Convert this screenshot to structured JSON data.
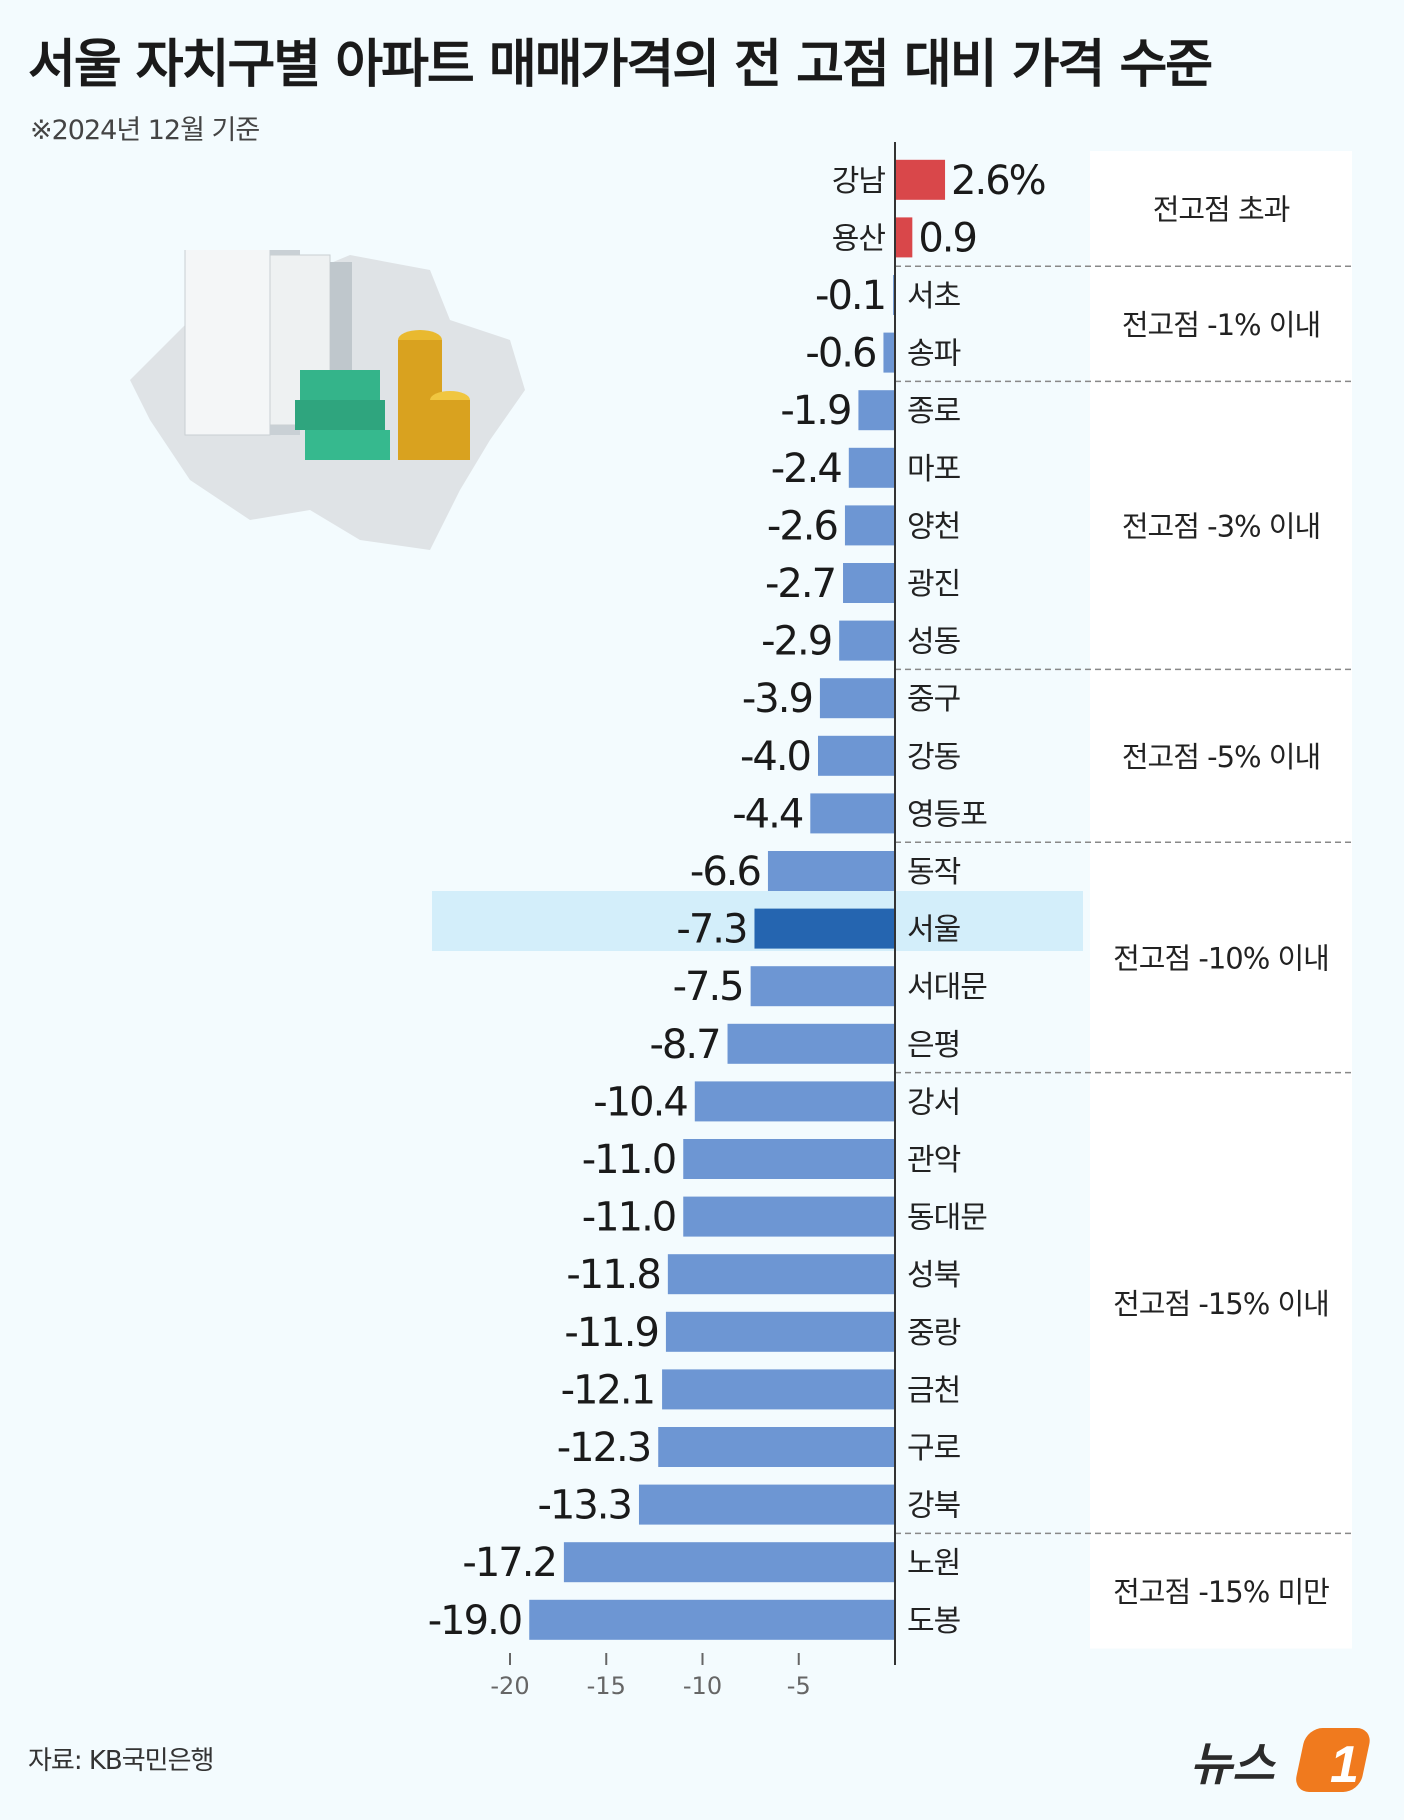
{
  "header": {
    "title": "서울 자치구별 아파트 매매가격의 전 고점 대비 가격 수준",
    "subtitle": "※2024년 12월 기준"
  },
  "footer": {
    "source": "자료: KB국민은행",
    "logo_text": "뉴스",
    "logo_mark": "1"
  },
  "colors": {
    "positive": "#d9474a",
    "negative": "#6d96d3",
    "highlight_bar": "#2565b0",
    "highlight_band": "#d3eefa",
    "group_panel": "#ffffff",
    "logo_orange": "#f07a1e"
  },
  "chart_data": {
    "type": "bar",
    "orientation": "horizontal",
    "categories": [
      "강남",
      "용산",
      "서초",
      "송파",
      "종로",
      "마포",
      "양천",
      "광진",
      "성동",
      "중구",
      "강동",
      "영등포",
      "동작",
      "서울",
      "서대문",
      "은평",
      "강서",
      "관악",
      "동대문",
      "성북",
      "중랑",
      "금천",
      "구로",
      "강북",
      "노원",
      "도봉"
    ],
    "values": [
      2.6,
      0.9,
      -0.1,
      -0.6,
      -1.9,
      -2.4,
      -2.6,
      -2.7,
      -2.9,
      -3.9,
      -4.0,
      -4.4,
      -6.6,
      -7.3,
      -7.5,
      -8.7,
      -10.4,
      -11.0,
      -11.0,
      -11.8,
      -11.9,
      -12.1,
      -12.3,
      -13.3,
      -17.2,
      -19.0
    ],
    "value_labels": [
      "2.6%",
      "0.9",
      "-0.1",
      "-0.6",
      "-1.9",
      "-2.4",
      "-2.6",
      "-2.7",
      "-2.9",
      "-3.9",
      "-4.0",
      "-4.4",
      "-6.6",
      "-7.3",
      "-7.5",
      "-8.7",
      "-10.4",
      "-11.0",
      "-11.0",
      "-11.8",
      "-11.9",
      "-12.1",
      "-12.3",
      "-13.3",
      "-17.2",
      "-19.0"
    ],
    "highlight": "서울",
    "xlim": [
      -20,
      0
    ],
    "xticks": [
      -20,
      -15,
      -10,
      -5
    ],
    "xtick_labels": [
      "-20",
      "-15",
      "-10",
      "-5"
    ],
    "groups": [
      {
        "label": "전고점 초과",
        "start": 0,
        "end": 1
      },
      {
        "label": "전고점 -1% 이내",
        "start": 2,
        "end": 3
      },
      {
        "label": "전고점 -3% 이내",
        "start": 4,
        "end": 8
      },
      {
        "label": "전고점 -5% 이내",
        "start": 9,
        "end": 11
      },
      {
        "label": "전고점 -10% 이내",
        "start": 12,
        "end": 15
      },
      {
        "label": "전고점 -15% 이내",
        "start": 16,
        "end": 23
      },
      {
        "label": "전고점 -15% 미만",
        "start": 24,
        "end": 25
      }
    ]
  }
}
